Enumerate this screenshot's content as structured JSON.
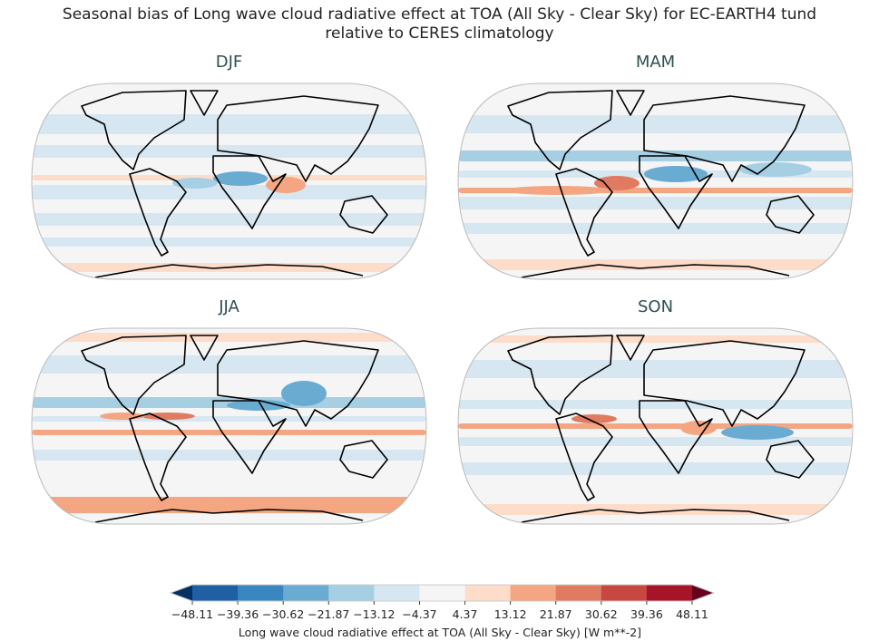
{
  "title_line1": "Seasonal bias of Long wave cloud radiative effect at TOA (All Sky - Clear Sky) for EC-EARTH4 tund",
  "title_line2": "relative to CERES climatology",
  "panels": [
    {
      "season": "DJF"
    },
    {
      "season": "MAM"
    },
    {
      "season": "JJA"
    },
    {
      "season": "SON"
    }
  ],
  "colorbar": {
    "label": "Long wave cloud radiative effect at TOA (All Sky - Clear Sky) [W m**-2]",
    "ticks": [
      "−48.11",
      "−39.36",
      "−30.62",
      "−21.87",
      "−13.12",
      "−4.37",
      "4.37",
      "13.12",
      "21.87",
      "30.62",
      "39.36",
      "48.11"
    ],
    "extend": "both",
    "colors": [
      "#053061",
      "#1f5fa4",
      "#3a86c0",
      "#6aabd2",
      "#a6cfe4",
      "#d6e7f1",
      "#f5f5f5",
      "#fddcc9",
      "#f4a582",
      "#e07b62",
      "#c94741",
      "#a51527",
      "#67001f"
    ]
  }
}
